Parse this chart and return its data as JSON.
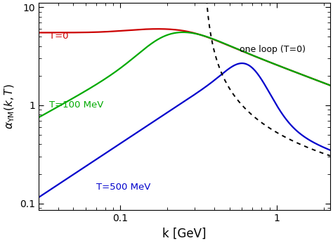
{
  "xlabel": "k [GeV]",
  "xlim": [
    0.03,
    2.2
  ],
  "ylim": [
    0.085,
    11
  ],
  "background_color": "#ffffff"
}
